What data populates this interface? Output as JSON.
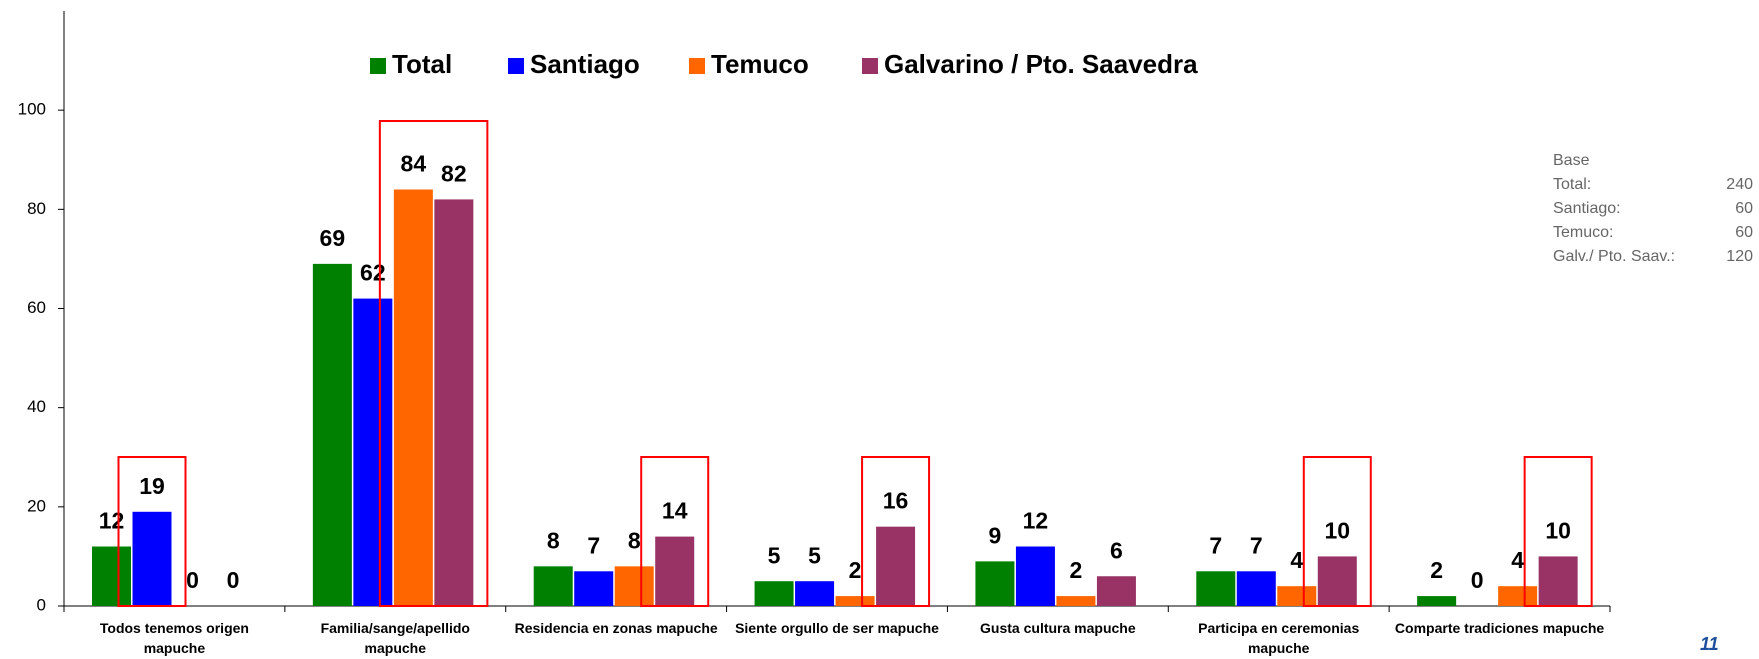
{
  "chart_data": {
    "type": "bar",
    "categories": [
      "Todos tenemos origen mapuche",
      "Familia/sange/apellido mapuche",
      "Residencia en zonas mapuche",
      "Siente orgullo de ser mapuche",
      "Gusta cultura mapuche",
      "Participa en ceremonias mapuche",
      "Comparte tradiciones mapuche"
    ],
    "series": [
      {
        "name": "Total",
        "color": "#008000",
        "values": [
          12,
          69,
          8,
          5,
          9,
          7,
          2
        ]
      },
      {
        "name": "Santiago",
        "color": "#0000ff",
        "values": [
          19,
          62,
          7,
          5,
          12,
          7,
          0
        ]
      },
      {
        "name": "Temuco",
        "color": "#ff6600",
        "values": [
          0,
          84,
          8,
          2,
          2,
          4,
          4
        ]
      },
      {
        "name": "Galvarino / Pto. Saavedra",
        "color": "#993366",
        "values": [
          0,
          82,
          14,
          16,
          6,
          10,
          10
        ]
      }
    ],
    "ylim": [
      0,
      120
    ],
    "yticks": [
      0,
      20,
      40,
      60,
      80,
      100
    ],
    "legend": "top"
  },
  "base": {
    "title": "Base",
    "rows": [
      [
        "Total:",
        "240"
      ],
      [
        "Santiago:",
        "60"
      ],
      [
        "Temuco:",
        "60"
      ],
      [
        "Galv./ Pto.  Saav.:",
        "120"
      ]
    ]
  },
  "page_number": "11"
}
